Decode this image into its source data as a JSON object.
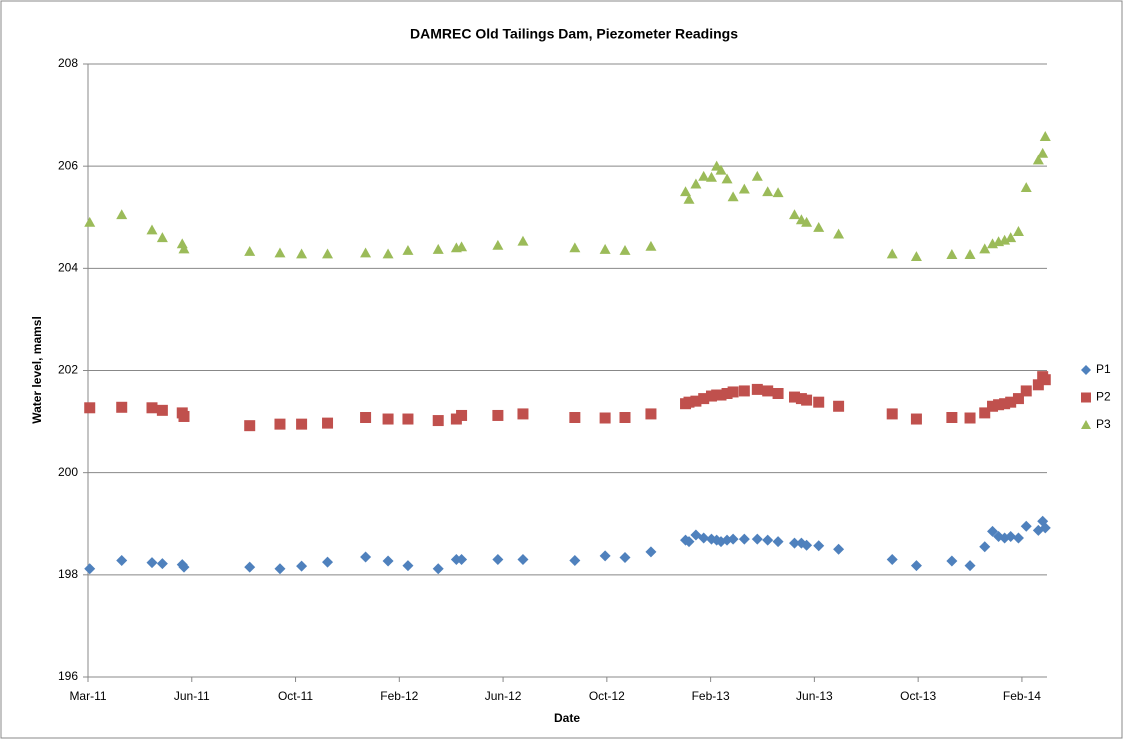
{
  "chart_data": {
    "type": "scatter",
    "title": "DAMREC Old Tailings Dam, Piezometer Readings",
    "x_label": "Date",
    "y_label": "Water level, mamsl",
    "x": [
      40605,
      40642,
      40677,
      40689,
      40712,
      40714,
      40790,
      40825,
      40850,
      40880,
      40924,
      40950,
      40973,
      41008,
      41029,
      41035,
      41077,
      41106,
      41166,
      41201,
      41224,
      41254,
      41294,
      41298,
      41306,
      41315,
      41324,
      41330,
      41335,
      41342,
      41349,
      41362,
      41377,
      41389,
      41401,
      41420,
      41428,
      41434,
      41448,
      41471,
      41533,
      41561,
      41602,
      41623,
      41640,
      41649,
      41656,
      41663,
      41670,
      41679,
      41688,
      41702,
      41707,
      41710
    ],
    "series": [
      {
        "name": "P1",
        "color": "#4f81bd",
        "marker": "diamond",
        "values": [
          198.12,
          198.28,
          198.24,
          198.22,
          198.2,
          198.15,
          198.15,
          198.12,
          198.17,
          198.25,
          198.35,
          198.27,
          198.18,
          198.12,
          198.3,
          198.3,
          198.3,
          198.3,
          198.28,
          198.37,
          198.34,
          198.45,
          198.68,
          198.65,
          198.78,
          198.72,
          198.7,
          198.68,
          198.65,
          198.68,
          198.7,
          198.7,
          198.7,
          198.68,
          198.65,
          198.62,
          198.62,
          198.58,
          198.57,
          198.5,
          198.3,
          198.18,
          198.27,
          198.18,
          198.55,
          198.85,
          198.75,
          198.72,
          198.75,
          198.72,
          198.95,
          198.87,
          199.05,
          198.92
        ]
      },
      {
        "name": "P2",
        "color": "#c0504d",
        "marker": "square",
        "values": [
          201.27,
          201.28,
          201.27,
          201.22,
          201.17,
          201.1,
          200.92,
          200.95,
          200.95,
          200.97,
          201.08,
          201.05,
          201.05,
          201.02,
          201.05,
          201.12,
          201.12,
          201.15,
          201.08,
          201.07,
          201.08,
          201.15,
          201.35,
          201.38,
          201.4,
          201.45,
          201.5,
          201.52,
          201.52,
          201.55,
          201.58,
          201.6,
          201.63,
          201.6,
          201.55,
          201.48,
          201.45,
          201.42,
          201.38,
          201.3,
          201.15,
          201.05,
          201.08,
          201.07,
          201.17,
          201.3,
          201.33,
          201.35,
          201.38,
          201.45,
          201.6,
          201.72,
          201.88,
          201.82
        ]
      },
      {
        "name": "P3",
        "color": "#9bbb59",
        "marker": "triangle",
        "values": [
          204.9,
          205.05,
          204.75,
          204.6,
          204.48,
          204.38,
          204.33,
          204.3,
          204.28,
          204.28,
          204.3,
          204.28,
          204.35,
          204.37,
          204.4,
          204.42,
          204.45,
          204.53,
          204.4,
          204.37,
          204.35,
          204.43,
          205.5,
          205.35,
          205.65,
          205.8,
          205.78,
          206.0,
          205.92,
          205.75,
          205.4,
          205.55,
          205.8,
          205.5,
          205.48,
          205.05,
          204.95,
          204.9,
          204.8,
          204.67,
          204.28,
          204.23,
          204.27,
          204.27,
          204.38,
          204.48,
          204.52,
          204.55,
          204.6,
          204.72,
          205.58,
          206.12,
          206.25,
          206.58
        ]
      }
    ],
    "xlim": [
      40603,
      41712
    ],
    "xticks": [
      {
        "value": 40603,
        "label": "Mar-11"
      },
      {
        "value": 40723,
        "label": "Jun-11"
      },
      {
        "value": 40843,
        "label": "Oct-11"
      },
      {
        "value": 40963,
        "label": "Feb-12"
      },
      {
        "value": 41083,
        "label": "Jun-12"
      },
      {
        "value": 41203,
        "label": "Oct-12"
      },
      {
        "value": 41323,
        "label": "Feb-13"
      },
      {
        "value": 41443,
        "label": "Jun-13"
      },
      {
        "value": 41563,
        "label": "Oct-13"
      },
      {
        "value": 41683,
        "label": "Feb-14"
      }
    ],
    "ylim": [
      196,
      208
    ],
    "yticks": [
      196,
      198,
      200,
      202,
      204,
      206,
      208
    ],
    "grid": true,
    "legend": "right"
  }
}
